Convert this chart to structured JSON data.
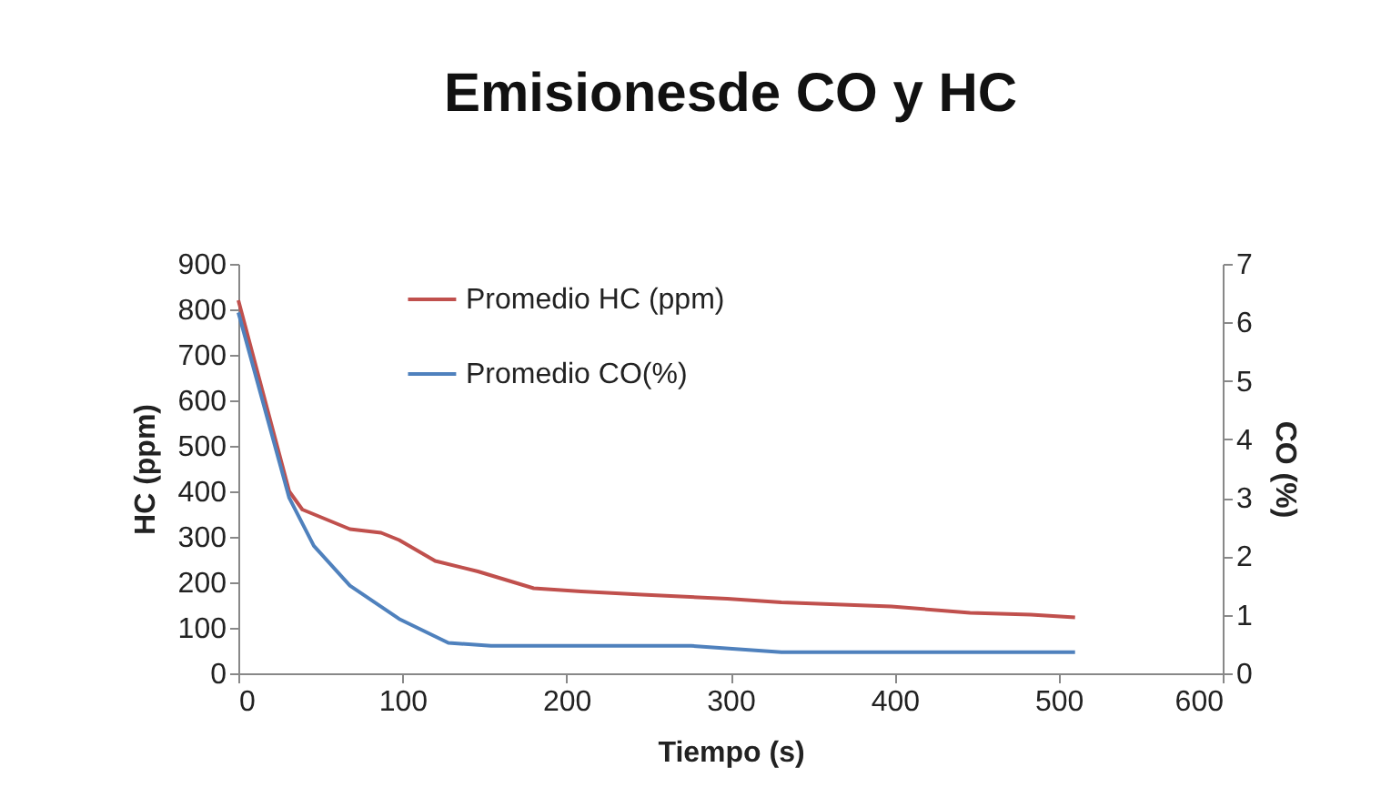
{
  "chart_data": {
    "type": "line",
    "title": "Emisionesde CO y HC",
    "xlabel": "Tiempo (s)",
    "ylabel": "HC (ppm)",
    "y2label": "CO (%)",
    "xlim": [
      0,
      600
    ],
    "xticks": [
      0,
      100,
      200,
      300,
      400,
      500,
      600
    ],
    "ylim": [
      0,
      900
    ],
    "yticks": [
      0,
      100,
      200,
      300,
      400,
      500,
      600,
      700,
      800,
      900
    ],
    "y2lim": [
      0,
      7
    ],
    "y2ticks": [
      0,
      1,
      2,
      3,
      4,
      5,
      6,
      7
    ],
    "legend": "top",
    "grid": false,
    "marker": "none",
    "line_style": "solid",
    "series": [
      {
        "name": "Promedio HC (ppm)",
        "color": "#c0504d",
        "x": [
          0,
          31,
          39,
          68,
          87,
          98,
          120,
          146,
          180,
          209,
          246,
          298,
          331,
          398,
          446,
          483,
          510
        ],
        "values": [
          820,
          400,
          360,
          317,
          309,
          293,
          247,
          224,
          187,
          180,
          173,
          164,
          156,
          147,
          133,
          129,
          123
        ]
      },
      {
        "name": "Promedio CO(%)",
        "color": "#4f81bd",
        "axis": "y2",
        "x": [
          0,
          31,
          46,
          68,
          98,
          128,
          154,
          200,
          276,
          331,
          400,
          510
        ],
        "values": [
          6.17,
          3.0,
          2.18,
          1.5,
          0.93,
          0.52,
          0.47,
          0.47,
          0.47,
          0.36,
          0.36,
          0.36
        ]
      }
    ]
  }
}
